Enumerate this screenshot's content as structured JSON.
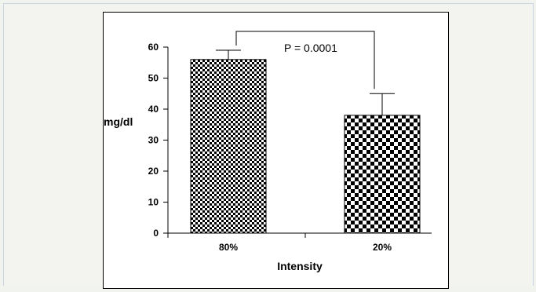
{
  "chart_data": {
    "type": "bar",
    "categories": [
      "80%",
      "20%"
    ],
    "values": [
      56,
      38
    ],
    "error_bars": [
      3,
      7
    ],
    "xlabel": "Intensity",
    "ylabel": "mg/dl",
    "ylim": [
      0,
      60
    ],
    "yticks": [
      "0",
      "10",
      "20",
      "30",
      "40",
      "50",
      "60"
    ],
    "annotation": "P = 0.0001",
    "grid": false,
    "legend": "none",
    "bar_fill": [
      "fine-checker",
      "coarse-checker"
    ]
  },
  "colors": {
    "bar_dark": "#000000",
    "bar_light": "#ffffff",
    "background": "#f1f3ef",
    "frame_border": "#c9d6e2"
  }
}
